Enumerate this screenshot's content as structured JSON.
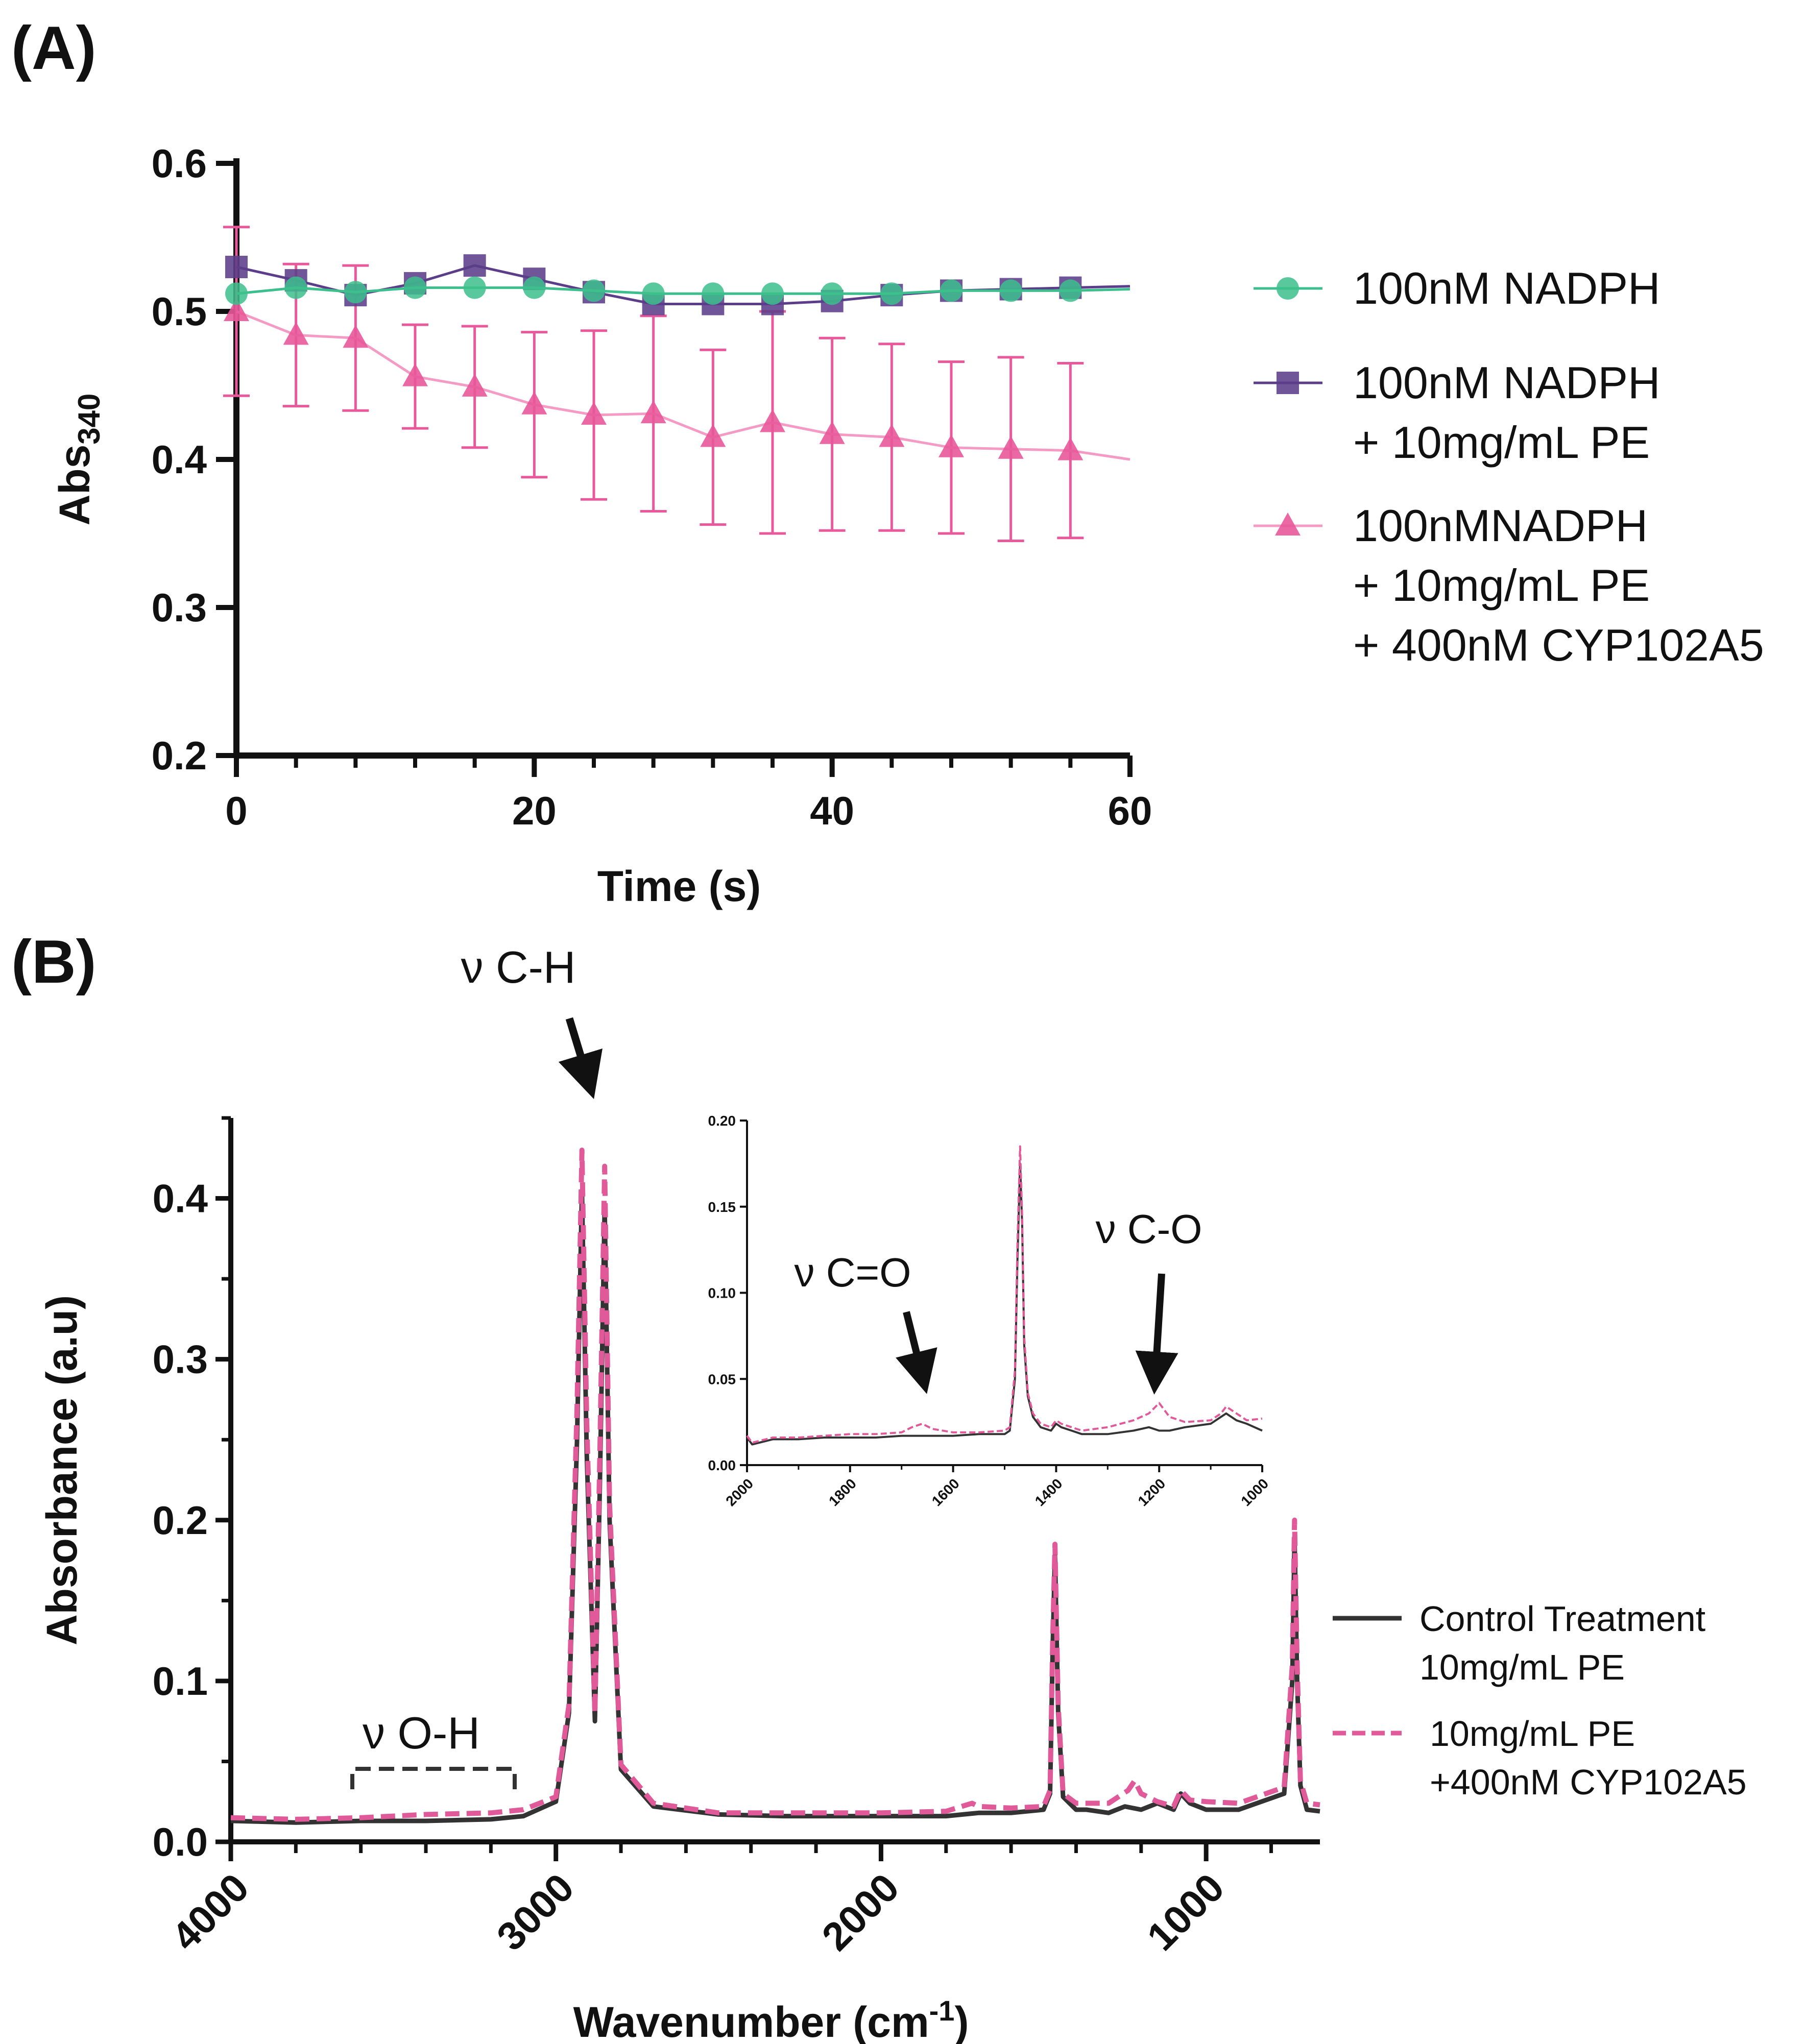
{
  "panels": {
    "a_label": "(A)",
    "b_label": "(B)"
  },
  "colors": {
    "green": "#3cbf8c",
    "purple": "#5c3d8a",
    "pink": "#e8589a",
    "pink_light": "#f49ac4",
    "dark": "#333333",
    "pink_dash": "#e05a9a"
  },
  "chart_data": [
    {
      "type": "line",
      "panel": "A",
      "title": "",
      "xlabel": "Time (s)",
      "ylabel_main": "Abs",
      "ylabel_sub": "340",
      "xlim": [
        0,
        60
      ],
      "ylim": [
        0.2,
        0.6
      ],
      "xticks": [
        0,
        20,
        40,
        60
      ],
      "xtick_labels": [
        "0",
        "20",
        "40",
        "60"
      ],
      "yticks": [
        0.2,
        0.3,
        0.4,
        0.5,
        0.6
      ],
      "ytick_labels": [
        "0.2",
        "0.3",
        "0.4",
        "0.5",
        "0.6"
      ],
      "x": [
        0,
        4,
        8,
        12,
        16,
        20,
        24,
        28,
        32,
        36,
        40,
        44,
        48,
        52,
        56
      ],
      "series": [
        {
          "name": "100nM NADPH",
          "legend_lines": [
            "100nM NADPH"
          ],
          "marker": "circle",
          "color_key": "green",
          "values": [
            0.512,
            0.516,
            0.513,
            0.516,
            0.516,
            0.516,
            0.514,
            0.512,
            0.512,
            0.512,
            0.512,
            0.512,
            0.514,
            0.514,
            0.514
          ],
          "fit_end": 0.515
        },
        {
          "name": "100nM NADPH + 10mg/mL PE",
          "legend_lines": [
            "100nM NADPH",
            "+ 10mg/mL PE"
          ],
          "marker": "square",
          "color_key": "purple",
          "values": [
            0.53,
            0.521,
            0.511,
            0.519,
            0.531,
            0.522,
            0.513,
            0.505,
            0.505,
            0.505,
            0.507,
            0.511,
            0.514,
            0.515,
            0.516
          ],
          "fit_end": 0.517
        },
        {
          "name": "100nMNADPH + 10mg/mL PE + 400nM CYP102A5",
          "legend_lines": [
            "100nMNADPH",
            "+ 10mg/mL PE",
            "+ 400nM CYP102A5"
          ],
          "marker": "triangle",
          "color_key": "pink",
          "line_color_key": "pink_light",
          "values": [
            0.5,
            0.484,
            0.482,
            0.456,
            0.449,
            0.437,
            0.43,
            0.431,
            0.415,
            0.425,
            0.417,
            0.415,
            0.408,
            0.407,
            0.406
          ],
          "error": [
            0.057,
            0.048,
            0.049,
            0.035,
            0.041,
            0.049,
            0.057,
            0.066,
            0.059,
            0.075,
            0.065,
            0.063,
            0.058,
            0.062,
            0.059
          ],
          "fit_end": 0.4
        }
      ]
    },
    {
      "type": "line",
      "panel": "B",
      "title": "",
      "xlabel_main": "Wavenumber (cm",
      "xlabel_sup": "-1",
      "xlabel_close": ")",
      "ylabel": "Absorbance (a.u)",
      "xlim": [
        4000,
        650
      ],
      "ylim": [
        0,
        0.45
      ],
      "xticks": [
        4000,
        3000,
        2000,
        1000
      ],
      "xtick_labels": [
        "4000",
        "3000",
        "2000",
        "1000"
      ],
      "yticks": [
        0.0,
        0.1,
        0.2,
        0.3,
        0.4
      ],
      "ytick_labels": [
        "0.0",
        "0.1",
        "0.2",
        "0.3",
        "0.4"
      ],
      "series": [
        {
          "name": "Control Treatment 10mg/mL PE",
          "legend_lines": [
            "Control Treatment",
            "10mg/mL PE"
          ],
          "color_key": "dark",
          "style": "solid",
          "x": [
            4000,
            3800,
            3600,
            3400,
            3200,
            3100,
            3000,
            2960,
            2935,
            2920,
            2905,
            2880,
            2865,
            2850,
            2835,
            2800,
            2700,
            2500,
            2300,
            2000,
            1800,
            1700,
            1600,
            1500,
            1480,
            1472,
            1465,
            1455,
            1440,
            1400,
            1368,
            1300,
            1250,
            1200,
            1150,
            1100,
            1078,
            1050,
            1000,
            900,
            760,
            735,
            728,
            720,
            710,
            690,
            650
          ],
          "y": [
            0.013,
            0.012,
            0.013,
            0.013,
            0.014,
            0.016,
            0.025,
            0.08,
            0.25,
            0.405,
            0.24,
            0.075,
            0.22,
            0.395,
            0.2,
            0.045,
            0.022,
            0.017,
            0.016,
            0.016,
            0.016,
            0.018,
            0.018,
            0.02,
            0.03,
            0.12,
            0.18,
            0.08,
            0.028,
            0.02,
            0.02,
            0.018,
            0.022,
            0.02,
            0.024,
            0.02,
            0.03,
            0.024,
            0.02,
            0.02,
            0.03,
            0.1,
            0.19,
            0.1,
            0.035,
            0.02,
            0.019
          ]
        },
        {
          "name": "10mg/mL PE +400nM CYP102A5",
          "legend_lines": [
            "10mg/mL PE",
            "+400nM CYP102A5"
          ],
          "color_key": "pink_dash",
          "style": "dashed",
          "x": [
            4000,
            3800,
            3600,
            3400,
            3200,
            3100,
            3000,
            2960,
            2935,
            2920,
            2905,
            2880,
            2865,
            2850,
            2835,
            2800,
            2700,
            2500,
            2300,
            2000,
            1800,
            1720,
            1700,
            1600,
            1500,
            1480,
            1472,
            1465,
            1455,
            1440,
            1400,
            1368,
            1300,
            1240,
            1220,
            1200,
            1150,
            1100,
            1078,
            1050,
            1000,
            900,
            760,
            735,
            728,
            720,
            710,
            690,
            650
          ],
          "y": [
            0.015,
            0.014,
            0.015,
            0.017,
            0.018,
            0.02,
            0.028,
            0.085,
            0.27,
            0.43,
            0.26,
            0.08,
            0.24,
            0.42,
            0.21,
            0.048,
            0.024,
            0.018,
            0.018,
            0.018,
            0.019,
            0.024,
            0.022,
            0.021,
            0.022,
            0.032,
            0.125,
            0.185,
            0.085,
            0.03,
            0.024,
            0.024,
            0.024,
            0.032,
            0.038,
            0.03,
            0.025,
            0.022,
            0.032,
            0.026,
            0.025,
            0.024,
            0.034,
            0.11,
            0.2,
            0.11,
            0.038,
            0.024,
            0.023
          ]
        }
      ],
      "annotations": {
        "ch": "ν C-H",
        "oh": "ν O-H"
      }
    },
    {
      "type": "line",
      "panel": "B-inset",
      "title": "",
      "xlim": [
        2000,
        1000
      ],
      "ylim": [
        0,
        0.2
      ],
      "xticks": [
        2000,
        1800,
        1600,
        1400,
        1200,
        1000
      ],
      "xtick_labels": [
        "2000",
        "1800",
        "1600",
        "1400",
        "1200",
        "1000"
      ],
      "yticks": [
        0,
        0.05,
        0.1,
        0.15,
        0.2
      ],
      "ytick_labels": [
        "0.00",
        "0.05",
        "0.10",
        "0.15",
        "0.20"
      ],
      "series": [
        {
          "name": "Control Treatment 10mg/mL PE",
          "color_key": "dark",
          "style": "solid",
          "x": [
            2000,
            1990,
            1950,
            1900,
            1850,
            1800,
            1750,
            1700,
            1650,
            1600,
            1550,
            1500,
            1490,
            1480,
            1475,
            1470,
            1466,
            1462,
            1455,
            1445,
            1430,
            1410,
            1400,
            1390,
            1370,
            1350,
            1300,
            1250,
            1220,
            1200,
            1180,
            1150,
            1100,
            1080,
            1070,
            1050,
            1030,
            1000
          ],
          "y": [
            0.016,
            0.012,
            0.015,
            0.015,
            0.016,
            0.016,
            0.016,
            0.017,
            0.017,
            0.017,
            0.018,
            0.018,
            0.02,
            0.05,
            0.12,
            0.175,
            0.14,
            0.07,
            0.04,
            0.028,
            0.022,
            0.02,
            0.024,
            0.022,
            0.02,
            0.018,
            0.018,
            0.02,
            0.022,
            0.02,
            0.02,
            0.022,
            0.024,
            0.028,
            0.03,
            0.026,
            0.024,
            0.02
          ]
        },
        {
          "name": "10mg/mL PE +400nM CYP102A5",
          "color_key": "pink_dash",
          "style": "dashed",
          "x": [
            2000,
            1990,
            1950,
            1900,
            1850,
            1800,
            1750,
            1700,
            1680,
            1660,
            1640,
            1600,
            1550,
            1500,
            1490,
            1480,
            1475,
            1470,
            1466,
            1462,
            1455,
            1445,
            1430,
            1410,
            1400,
            1390,
            1370,
            1350,
            1300,
            1250,
            1220,
            1200,
            1180,
            1150,
            1100,
            1080,
            1070,
            1050,
            1030,
            1000
          ],
          "y": [
            0.017,
            0.013,
            0.016,
            0.016,
            0.017,
            0.018,
            0.018,
            0.019,
            0.022,
            0.024,
            0.021,
            0.019,
            0.019,
            0.02,
            0.022,
            0.055,
            0.13,
            0.185,
            0.145,
            0.075,
            0.042,
            0.03,
            0.024,
            0.022,
            0.026,
            0.024,
            0.022,
            0.02,
            0.022,
            0.026,
            0.03,
            0.036,
            0.028,
            0.025,
            0.026,
            0.03,
            0.034,
            0.03,
            0.026,
            0.027
          ]
        }
      ],
      "annotations": {
        "co_double": "ν C=O",
        "co_single": "ν C-O"
      }
    }
  ]
}
